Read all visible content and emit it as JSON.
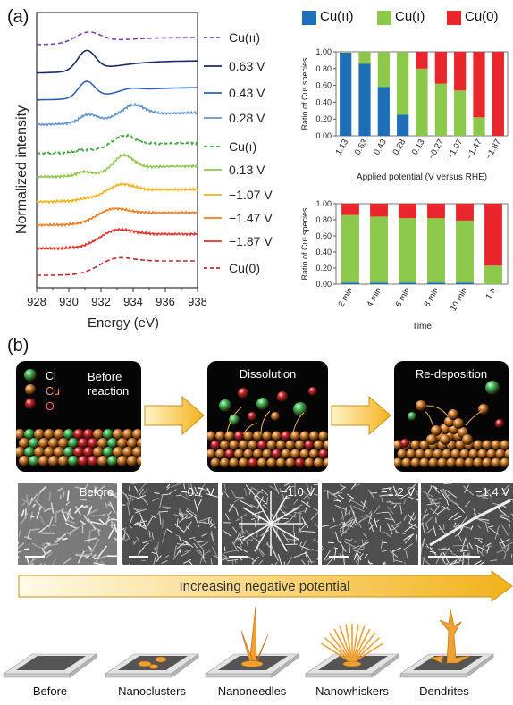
{
  "figure": {
    "panel_a_label": "(a)",
    "panel_b_label": "(b)"
  },
  "xas": {
    "ylabel": "Normalized intensity",
    "xlabel": "Energy (eV)",
    "xticks": [
      "928",
      "930",
      "932",
      "934",
      "936",
      "938"
    ],
    "legend": [
      {
        "label": "Cu(ıı)",
        "color": "#7b3fb6",
        "dashed": true
      },
      {
        "label": "0.63 V",
        "color": "#1c2c6b",
        "dashed": false
      },
      {
        "label": "0.43 V",
        "color": "#2e62b6",
        "dashed": false
      },
      {
        "label": "0.28 V",
        "color": "#5f96cf",
        "dashed": false
      },
      {
        "label": "Cu(ı)",
        "color": "#3aa63a",
        "dashed": true
      },
      {
        "label": "0.13 V",
        "color": "#8fc94e",
        "dashed": false
      },
      {
        "label": "−1.07 V",
        "color": "#f3b21c",
        "dashed": false
      },
      {
        "label": "−1.47 V",
        "color": "#ef7d22",
        "dashed": false
      },
      {
        "label": "−1.87 V",
        "color": "#e5332a",
        "dashed": false
      },
      {
        "label": "Cu(0)",
        "color": "#c62828",
        "dashed": true
      }
    ]
  },
  "legend_bar": [
    {
      "label": "Cu(ıı)",
      "color": "#1f6fb8"
    },
    {
      "label": "Cu(ı)",
      "color": "#8cc84b"
    },
    {
      "label": "Cu(0)",
      "color": "#e8262c"
    }
  ],
  "chart_data": [
    {
      "type": "bar",
      "stacked": true,
      "ylabel": "Ratio of Cuˣ species",
      "xlabel": "Applied potential (V versus RHE)",
      "yticks": [
        "0.00",
        "0.20",
        "0.40",
        "0.60",
        "0.80",
        "1.00"
      ],
      "ylim": [
        0,
        1
      ],
      "categories": [
        "1.13",
        "0.63",
        "0.43",
        "0.28",
        "0.13",
        "−0.27",
        "−1.07",
        "−1.47",
        "−1.87"
      ],
      "series": [
        {
          "name": "Cu(ıı)",
          "values": [
            0.99,
            0.86,
            0.58,
            0.25,
            0.0,
            0.0,
            0.0,
            0.0,
            0.0
          ]
        },
        {
          "name": "Cu(ı)",
          "values": [
            0.01,
            0.14,
            0.42,
            0.75,
            0.8,
            0.62,
            0.54,
            0.22,
            0.0
          ]
        },
        {
          "name": "Cu(0)",
          "values": [
            0.0,
            0.0,
            0.0,
            0.0,
            0.2,
            0.38,
            0.46,
            0.78,
            1.0
          ]
        }
      ]
    },
    {
      "type": "bar",
      "stacked": true,
      "ylabel": "Ratio of Cuˣ species",
      "xlabel": "Time",
      "yticks": [
        "0.00",
        "0.20",
        "0.40",
        "0.60",
        "0.80",
        "1.00"
      ],
      "ylim": [
        0,
        1
      ],
      "categories": [
        "2 min",
        "4 min",
        "6 min",
        "8 min",
        "10 min",
        "1 h"
      ],
      "series": [
        {
          "name": "Cu(ıı)",
          "values": [
            0.02,
            0.02,
            0.02,
            0.02,
            0.02,
            0.0
          ]
        },
        {
          "name": "Cu(ı)",
          "values": [
            0.84,
            0.82,
            0.8,
            0.8,
            0.77,
            0.23
          ]
        },
        {
          "name": "Cu(0)",
          "values": [
            0.14,
            0.16,
            0.18,
            0.18,
            0.21,
            0.77
          ]
        }
      ]
    }
  ],
  "mechanism": {
    "legend_cl": "Cl",
    "legend_cu": "Cu",
    "legend_o": "O",
    "before": "Before\nreaction",
    "dissolution": "Dissolution",
    "redeposition": "Re-deposition"
  },
  "sem": [
    {
      "label": "Before"
    },
    {
      "label": "−0.7 V"
    },
    {
      "label": "−1.0 V"
    },
    {
      "label": "−1.2 V"
    },
    {
      "label": "−1.4 V"
    }
  ],
  "potential_arrow": "Increasing negative potential",
  "morphologies": [
    "Before",
    "Nanoclusters",
    "Nanoneedles",
    "Nanowhiskers",
    "Dendrites"
  ]
}
